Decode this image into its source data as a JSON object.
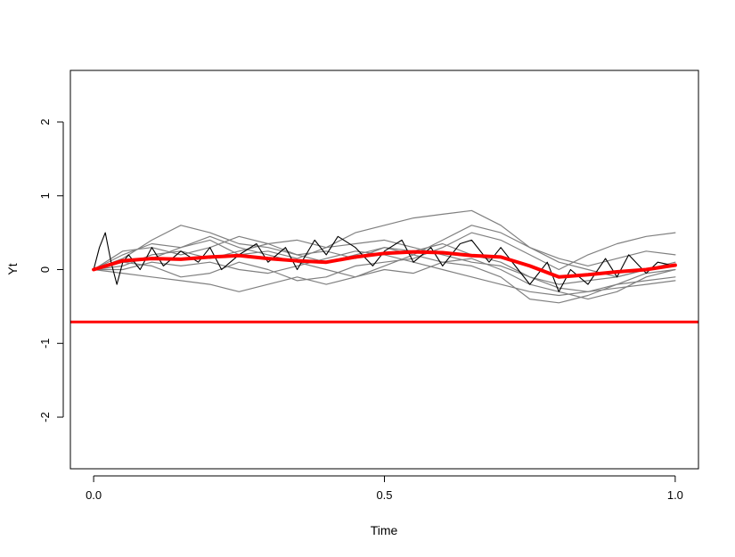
{
  "chart_data": {
    "type": "line",
    "title": "",
    "xlabel": "Time",
    "ylabel": "Yt",
    "xlim": [
      -0.04,
      1.04
    ],
    "ylim": [
      -2.7,
      2.7
    ],
    "x_ticks": [
      0.0,
      0.5,
      1.0
    ],
    "x_tick_labels": [
      "0.0",
      "0.5",
      "1.0"
    ],
    "y_ticks": [
      -2,
      -1,
      0,
      1,
      2
    ],
    "y_tick_labels": [
      "-2",
      "-1",
      "0",
      "1",
      "2"
    ],
    "grid": false,
    "legend": "none",
    "colors": {
      "sample_paths": "#808080",
      "noisy_path": "#000000",
      "mean_path": "#ff0000",
      "reference_line": "#ff0000"
    },
    "hline": -0.71,
    "series": [
      {
        "role": "noisy-path",
        "x": [
          0,
          0.01,
          0.02,
          0.03,
          0.04,
          0.05,
          0.06,
          0.08,
          0.1,
          0.12,
          0.15,
          0.18,
          0.2,
          0.22,
          0.25,
          0.28,
          0.3,
          0.33,
          0.35,
          0.38,
          0.4,
          0.42,
          0.45,
          0.48,
          0.5,
          0.53,
          0.55,
          0.58,
          0.6,
          0.63,
          0.65,
          0.68,
          0.7,
          0.73,
          0.75,
          0.78,
          0.8,
          0.82,
          0.85,
          0.88,
          0.9,
          0.92,
          0.95,
          0.97,
          1.0
        ],
        "y": [
          0.0,
          0.3,
          0.5,
          0.1,
          -0.2,
          0.1,
          0.2,
          0.0,
          0.3,
          0.05,
          0.25,
          0.1,
          0.3,
          0.0,
          0.2,
          0.35,
          0.1,
          0.3,
          0.0,
          0.4,
          0.2,
          0.45,
          0.3,
          0.05,
          0.25,
          0.4,
          0.1,
          0.3,
          0.05,
          0.35,
          0.4,
          0.1,
          0.3,
          0.0,
          -0.2,
          0.1,
          -0.3,
          0.0,
          -0.2,
          0.15,
          -0.1,
          0.2,
          -0.05,
          0.1,
          0.05
        ]
      },
      {
        "role": "sample-path",
        "x": [
          0,
          0.05,
          0.1,
          0.15,
          0.2,
          0.25,
          0.3,
          0.35,
          0.4,
          0.45,
          0.5,
          0.55,
          0.6,
          0.65,
          0.7,
          0.75,
          0.8,
          0.85,
          0.9,
          0.95,
          1.0
        ],
        "y": [
          0.0,
          0.2,
          0.35,
          0.3,
          0.4,
          0.2,
          0.25,
          0.15,
          0.3,
          0.5,
          0.6,
          0.7,
          0.75,
          0.8,
          0.6,
          0.3,
          0.1,
          0.0,
          -0.1,
          0.0,
          0.1
        ]
      },
      {
        "role": "sample-path",
        "x": [
          0,
          0.05,
          0.1,
          0.15,
          0.2,
          0.25,
          0.3,
          0.35,
          0.4,
          0.45,
          0.5,
          0.55,
          0.6,
          0.65,
          0.7,
          0.75,
          0.8,
          0.85,
          0.9,
          0.95,
          1.0
        ],
        "y": [
          0.0,
          0.15,
          0.4,
          0.6,
          0.5,
          0.35,
          0.3,
          0.2,
          0.25,
          0.15,
          0.3,
          0.2,
          0.1,
          0.15,
          0.0,
          -0.2,
          -0.3,
          -0.4,
          -0.3,
          -0.1,
          0.0
        ]
      },
      {
        "role": "sample-path",
        "x": [
          0,
          0.05,
          0.1,
          0.15,
          0.2,
          0.25,
          0.3,
          0.35,
          0.4,
          0.45,
          0.5,
          0.55,
          0.6,
          0.65,
          0.7,
          0.75,
          0.8,
          0.85,
          0.9,
          0.95,
          1.0
        ],
        "y": [
          0.0,
          -0.05,
          -0.1,
          -0.15,
          -0.2,
          -0.3,
          -0.2,
          -0.1,
          -0.2,
          -0.1,
          0.0,
          -0.05,
          0.1,
          0.05,
          -0.1,
          -0.4,
          -0.45,
          -0.35,
          -0.2,
          -0.05,
          0.0
        ]
      },
      {
        "role": "sample-path",
        "x": [
          0,
          0.05,
          0.1,
          0.15,
          0.2,
          0.25,
          0.3,
          0.35,
          0.4,
          0.45,
          0.5,
          0.55,
          0.6,
          0.65,
          0.7,
          0.75,
          0.8,
          0.85,
          0.9,
          0.95,
          1.0
        ],
        "y": [
          0.0,
          0.1,
          0.05,
          -0.1,
          -0.05,
          0.1,
          0.0,
          -0.15,
          -0.1,
          0.05,
          0.1,
          0.15,
          0.3,
          0.5,
          0.4,
          0.2,
          0.0,
          0.2,
          0.35,
          0.45,
          0.5
        ]
      },
      {
        "role": "sample-path",
        "x": [
          0,
          0.05,
          0.1,
          0.15,
          0.2,
          0.25,
          0.3,
          0.35,
          0.4,
          0.45,
          0.5,
          0.55,
          0.6,
          0.65,
          0.7,
          0.75,
          0.8,
          0.85,
          0.9,
          0.95,
          1.0
        ],
        "y": [
          0.0,
          0.05,
          0.2,
          0.25,
          0.15,
          0.25,
          0.35,
          0.4,
          0.3,
          0.35,
          0.4,
          0.3,
          0.2,
          0.1,
          0.05,
          -0.1,
          -0.2,
          -0.15,
          -0.1,
          0.0,
          0.05
        ]
      },
      {
        "role": "sample-path",
        "x": [
          0,
          0.05,
          0.1,
          0.15,
          0.2,
          0.25,
          0.3,
          0.35,
          0.4,
          0.45,
          0.5,
          0.55,
          0.6,
          0.65,
          0.7,
          0.75,
          0.8,
          0.85,
          0.9,
          0.95,
          1.0
        ],
        "y": [
          0.0,
          0.25,
          0.3,
          0.2,
          0.3,
          0.45,
          0.35,
          0.2,
          0.1,
          0.2,
          0.3,
          0.25,
          0.35,
          0.2,
          0.1,
          -0.1,
          -0.25,
          -0.3,
          -0.2,
          -0.15,
          -0.1
        ]
      },
      {
        "role": "sample-path",
        "x": [
          0,
          0.05,
          0.1,
          0.15,
          0.2,
          0.25,
          0.3,
          0.35,
          0.4,
          0.45,
          0.5,
          0.55,
          0.6,
          0.65,
          0.7,
          0.75,
          0.8,
          0.85,
          0.9,
          0.95,
          1.0
        ],
        "y": [
          0.0,
          0.1,
          0.15,
          0.3,
          0.45,
          0.3,
          0.2,
          0.1,
          0.0,
          -0.1,
          0.05,
          0.2,
          0.4,
          0.6,
          0.5,
          0.3,
          0.15,
          0.05,
          0.15,
          0.25,
          0.2
        ]
      },
      {
        "role": "sample-path",
        "x": [
          0,
          0.05,
          0.1,
          0.15,
          0.2,
          0.25,
          0.3,
          0.35,
          0.4,
          0.45,
          0.5,
          0.55,
          0.6,
          0.65,
          0.7,
          0.75,
          0.8,
          0.85,
          0.9,
          0.95,
          1.0
        ],
        "y": [
          0.0,
          0.0,
          0.1,
          0.05,
          0.1,
          0.0,
          -0.05,
          0.05,
          0.15,
          0.25,
          0.2,
          0.1,
          0.0,
          -0.1,
          -0.2,
          -0.3,
          -0.35,
          -0.3,
          -0.25,
          -0.2,
          -0.15
        ]
      },
      {
        "role": "mean-path",
        "x": [
          0,
          0.05,
          0.1,
          0.15,
          0.2,
          0.25,
          0.3,
          0.35,
          0.4,
          0.45,
          0.5,
          0.55,
          0.6,
          0.65,
          0.7,
          0.75,
          0.8,
          0.85,
          0.9,
          0.95,
          1.0
        ],
        "y": [
          0.0,
          0.12,
          0.15,
          0.14,
          0.17,
          0.19,
          0.15,
          0.12,
          0.1,
          0.17,
          0.22,
          0.24,
          0.23,
          0.19,
          0.17,
          0.05,
          -0.1,
          -0.07,
          -0.03,
          0.0,
          0.06
        ]
      }
    ]
  }
}
